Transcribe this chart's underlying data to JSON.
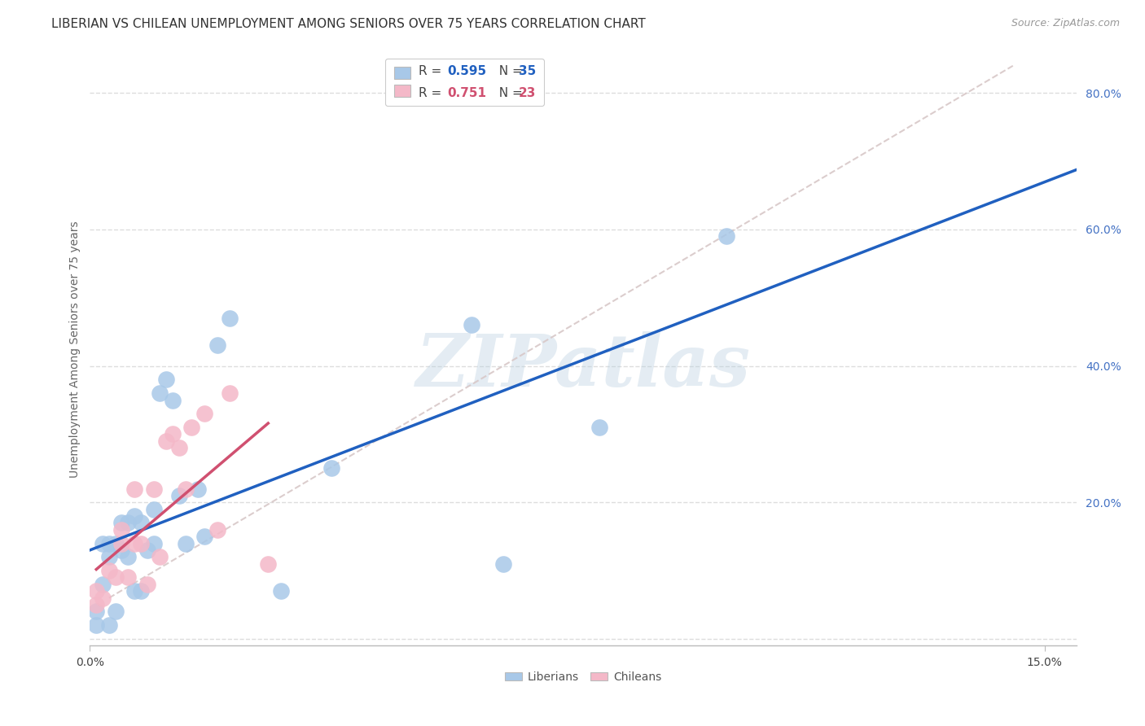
{
  "title": "LIBERIAN VS CHILEAN UNEMPLOYMENT AMONG SENIORS OVER 75 YEARS CORRELATION CHART",
  "source": "Source: ZipAtlas.com",
  "ylabel": "Unemployment Among Seniors over 75 years",
  "xlim": [
    0.0,
    0.155
  ],
  "ylim": [
    -0.01,
    0.86
  ],
  "ytick_vals": [
    0.0,
    0.2,
    0.4,
    0.6,
    0.8
  ],
  "ytick_labels": [
    "",
    "20.0%",
    "40.0%",
    "60.0%",
    "80.0%"
  ],
  "xtick_vals": [
    0.0,
    0.15
  ],
  "xtick_labels": [
    "0.0%",
    "15.0%"
  ],
  "grid_color": "#dddddd",
  "background_color": "#ffffff",
  "liberian_color": "#a8c8e8",
  "chilean_color": "#f4b8c8",
  "liberian_line_color": "#2060c0",
  "chilean_line_color": "#d05070",
  "diagonal_color": "#d8c8c8",
  "legend_R_liberian": "0.595",
  "legend_N_liberian": "35",
  "legend_R_chilean": "0.751",
  "legend_N_chilean": "23",
  "lib_x": [
    0.001,
    0.001,
    0.002,
    0.002,
    0.003,
    0.003,
    0.003,
    0.004,
    0.004,
    0.005,
    0.005,
    0.006,
    0.006,
    0.007,
    0.007,
    0.008,
    0.008,
    0.009,
    0.01,
    0.01,
    0.011,
    0.012,
    0.013,
    0.014,
    0.015,
    0.017,
    0.018,
    0.02,
    0.022,
    0.03,
    0.038,
    0.06,
    0.065,
    0.08,
    0.1
  ],
  "lib_y": [
    0.02,
    0.04,
    0.08,
    0.14,
    0.12,
    0.14,
    0.02,
    0.04,
    0.14,
    0.13,
    0.17,
    0.12,
    0.17,
    0.18,
    0.07,
    0.17,
    0.07,
    0.13,
    0.14,
    0.19,
    0.36,
    0.38,
    0.35,
    0.21,
    0.14,
    0.22,
    0.15,
    0.43,
    0.47,
    0.07,
    0.25,
    0.46,
    0.11,
    0.31,
    0.59
  ],
  "chi_x": [
    0.001,
    0.001,
    0.002,
    0.003,
    0.004,
    0.005,
    0.005,
    0.006,
    0.007,
    0.007,
    0.008,
    0.009,
    0.01,
    0.011,
    0.012,
    0.013,
    0.014,
    0.015,
    0.016,
    0.018,
    0.02,
    0.022,
    0.028
  ],
  "chi_y": [
    0.05,
    0.07,
    0.06,
    0.1,
    0.09,
    0.14,
    0.16,
    0.09,
    0.14,
    0.22,
    0.14,
    0.08,
    0.22,
    0.12,
    0.29,
    0.3,
    0.28,
    0.22,
    0.31,
    0.33,
    0.16,
    0.36,
    0.11
  ],
  "watermark": "ZIPatlas",
  "title_fontsize": 11,
  "tick_fontsize": 10,
  "ylabel_fontsize": 10,
  "legend_fontsize": 11,
  "source_fontsize": 9
}
